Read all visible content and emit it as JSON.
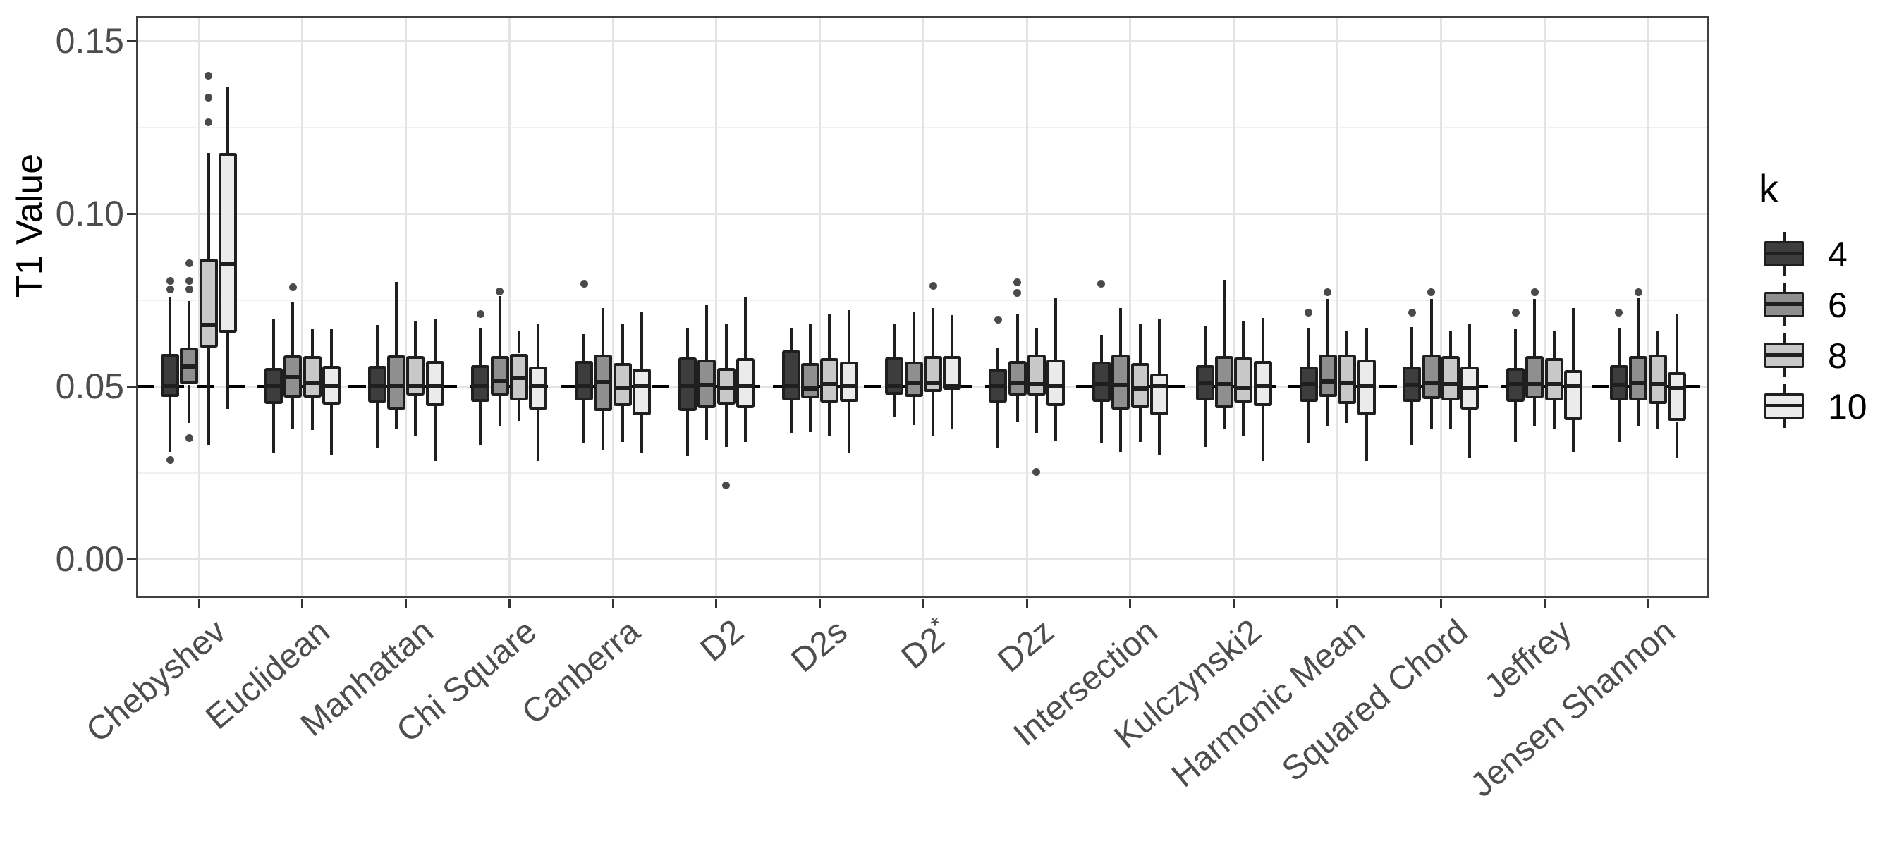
{
  "figure": {
    "background": "#ffffff"
  },
  "chart_data": {
    "type": "grouped_boxplot",
    "title": "",
    "xlabel": "",
    "ylabel": "T1 Value",
    "categories": [
      "Chebyshev",
      "Euclidean",
      "Manhattan",
      "Chi Square",
      "Canberra",
      "D2",
      "D2s",
      "D2*",
      "D2z",
      "Intersection",
      "Kulczynski2",
      "Harmonic Mean",
      "Squared Chord",
      "Jeffrey",
      "Jensen Shannon"
    ],
    "y_axis": {
      "ticks": [
        0.0,
        0.05,
        0.1,
        0.15
      ],
      "tick_labels": [
        "0.00",
        "0.05",
        "0.10",
        "0.15"
      ],
      "minor_gridlines": [
        0.025,
        0.075,
        0.125
      ],
      "range_shown": [
        -0.0112,
        0.1572
      ]
    },
    "reference_line": {
      "y": 0.05,
      "style": "dashed",
      "color": "#000000"
    },
    "grid": {
      "major": true,
      "minor": true,
      "major_color": "#e4e4e4",
      "minor_color": "#f0f0f0"
    },
    "legend": {
      "title": "k",
      "position": "right",
      "entries": [
        {
          "label": "4",
          "fill": "#3d3d3d"
        },
        {
          "label": "6",
          "fill": "#8f8f8f"
        },
        {
          "label": "8",
          "fill": "#c8c8c8"
        },
        {
          "label": "10",
          "fill": "#ebebeb"
        }
      ]
    },
    "series": [
      {
        "name": "4",
        "fill": "#3d3d3d",
        "boxes": [
          {
            "lo": 0.031,
            "q1": 0.047,
            "med": 0.0502,
            "q3": 0.0593,
            "hi": 0.076,
            "out": [
              0.078,
              0.0805,
              0.0286
            ]
          },
          {
            "lo": 0.0307,
            "q1": 0.045,
            "med": 0.05,
            "q3": 0.0553,
            "hi": 0.0697,
            "out": []
          },
          {
            "lo": 0.0323,
            "q1": 0.0453,
            "med": 0.05,
            "q3": 0.056,
            "hi": 0.0677,
            "out": []
          },
          {
            "lo": 0.0331,
            "q1": 0.0456,
            "med": 0.0503,
            "q3": 0.0561,
            "hi": 0.0669,
            "out": [
              0.071
            ]
          },
          {
            "lo": 0.0334,
            "q1": 0.0459,
            "med": 0.05,
            "q3": 0.0574,
            "hi": 0.0652,
            "out": [
              0.0797
            ]
          },
          {
            "lo": 0.0297,
            "q1": 0.0429,
            "med": 0.05,
            "q3": 0.0584,
            "hi": 0.0669,
            "out": []
          },
          {
            "lo": 0.0365,
            "q1": 0.0459,
            "med": 0.05,
            "q3": 0.0605,
            "hi": 0.0669,
            "out": []
          },
          {
            "lo": 0.0412,
            "q1": 0.0476,
            "med": 0.05,
            "q3": 0.0584,
            "hi": 0.0679,
            "out": []
          },
          {
            "lo": 0.0321,
            "q1": 0.0453,
            "med": 0.0503,
            "q3": 0.0551,
            "hi": 0.0612,
            "out": [
              0.0693
            ]
          },
          {
            "lo": 0.0334,
            "q1": 0.0456,
            "med": 0.0507,
            "q3": 0.0571,
            "hi": 0.0649,
            "out": [
              0.0797
            ]
          },
          {
            "lo": 0.0324,
            "q1": 0.0459,
            "med": 0.051,
            "q3": 0.0561,
            "hi": 0.0676,
            "out": []
          },
          {
            "lo": 0.0334,
            "q1": 0.0456,
            "med": 0.0507,
            "q3": 0.0557,
            "hi": 0.0669,
            "out": [
              0.0713
            ]
          },
          {
            "lo": 0.0331,
            "q1": 0.0456,
            "med": 0.0505,
            "q3": 0.0557,
            "hi": 0.0672,
            "out": [
              0.0713
            ]
          },
          {
            "lo": 0.0338,
            "q1": 0.0456,
            "med": 0.0507,
            "q3": 0.0554,
            "hi": 0.0666,
            "out": [
              0.0713
            ]
          },
          {
            "lo": 0.0338,
            "q1": 0.0459,
            "med": 0.0505,
            "q3": 0.0561,
            "hi": 0.0669,
            "out": [
              0.0713
            ]
          }
        ]
      },
      {
        "name": "6",
        "fill": "#8f8f8f",
        "boxes": [
          {
            "lo": 0.0393,
            "q1": 0.0505,
            "med": 0.0558,
            "q3": 0.0613,
            "hi": 0.0747,
            "out": [
              0.078,
              0.0805,
              0.0856,
              0.035
            ]
          },
          {
            "lo": 0.0377,
            "q1": 0.0467,
            "med": 0.0527,
            "q3": 0.059,
            "hi": 0.0743,
            "out": [
              0.0787
            ]
          },
          {
            "lo": 0.0377,
            "q1": 0.0433,
            "med": 0.0503,
            "q3": 0.059,
            "hi": 0.0803,
            "out": []
          },
          {
            "lo": 0.0385,
            "q1": 0.0473,
            "med": 0.0517,
            "q3": 0.0588,
            "hi": 0.0762,
            "out": [
              0.0775
            ]
          },
          {
            "lo": 0.0314,
            "q1": 0.0429,
            "med": 0.0512,
            "q3": 0.0591,
            "hi": 0.0727,
            "out": []
          },
          {
            "lo": 0.0345,
            "q1": 0.0436,
            "med": 0.0505,
            "q3": 0.0578,
            "hi": 0.0737,
            "out": []
          },
          {
            "lo": 0.0368,
            "q1": 0.0466,
            "med": 0.0493,
            "q3": 0.0568,
            "hi": 0.0679,
            "out": []
          },
          {
            "lo": 0.0388,
            "q1": 0.047,
            "med": 0.051,
            "q3": 0.0571,
            "hi": 0.0716,
            "out": []
          },
          {
            "lo": 0.0395,
            "q1": 0.0473,
            "med": 0.051,
            "q3": 0.0574,
            "hi": 0.071,
            "out": [
              0.077,
              0.0801
            ]
          },
          {
            "lo": 0.0311,
            "q1": 0.0432,
            "med": 0.0505,
            "q3": 0.0591,
            "hi": 0.0727,
            "out": []
          },
          {
            "lo": 0.0375,
            "q1": 0.0436,
            "med": 0.0507,
            "q3": 0.0588,
            "hi": 0.0808,
            "out": []
          },
          {
            "lo": 0.0385,
            "q1": 0.047,
            "med": 0.0514,
            "q3": 0.0591,
            "hi": 0.0753,
            "out": [
              0.0772
            ]
          },
          {
            "lo": 0.0378,
            "q1": 0.0463,
            "med": 0.051,
            "q3": 0.0591,
            "hi": 0.0753,
            "out": [
              0.0772
            ]
          },
          {
            "lo": 0.0385,
            "q1": 0.0466,
            "med": 0.0507,
            "q3": 0.0588,
            "hi": 0.0753,
            "out": [
              0.0772
            ]
          },
          {
            "lo": 0.0385,
            "q1": 0.0459,
            "med": 0.051,
            "q3": 0.0588,
            "hi": 0.0757,
            "out": [
              0.0772
            ]
          }
        ]
      },
      {
        "name": "8",
        "fill": "#c8c8c8",
        "boxes": [
          {
            "lo": 0.0331,
            "q1": 0.0612,
            "med": 0.0678,
            "q3": 0.087,
            "hi": 0.1175,
            "out": [
              0.1265,
              0.1335,
              0.14
            ]
          },
          {
            "lo": 0.0373,
            "q1": 0.0467,
            "med": 0.051,
            "q3": 0.0587,
            "hi": 0.0667,
            "out": []
          },
          {
            "lo": 0.0357,
            "q1": 0.0473,
            "med": 0.05,
            "q3": 0.0587,
            "hi": 0.0687,
            "out": []
          },
          {
            "lo": 0.0399,
            "q1": 0.0459,
            "med": 0.0524,
            "q3": 0.0595,
            "hi": 0.0659,
            "out": []
          },
          {
            "lo": 0.0338,
            "q1": 0.0443,
            "med": 0.0497,
            "q3": 0.0568,
            "hi": 0.0679,
            "out": []
          },
          {
            "lo": 0.0324,
            "q1": 0.0446,
            "med": 0.0497,
            "q3": 0.0554,
            "hi": 0.0679,
            "out": [
              0.0213
            ]
          },
          {
            "lo": 0.0355,
            "q1": 0.0453,
            "med": 0.0507,
            "q3": 0.0581,
            "hi": 0.071,
            "out": []
          },
          {
            "lo": 0.0358,
            "q1": 0.0483,
            "med": 0.051,
            "q3": 0.0588,
            "hi": 0.0727,
            "out": [
              0.0791
            ]
          },
          {
            "lo": 0.0365,
            "q1": 0.0473,
            "med": 0.0507,
            "q3": 0.0591,
            "hi": 0.0669,
            "out": [
              0.0253
            ]
          },
          {
            "lo": 0.0338,
            "q1": 0.0436,
            "med": 0.0495,
            "q3": 0.0568,
            "hi": 0.0679,
            "out": []
          },
          {
            "lo": 0.0355,
            "q1": 0.0453,
            "med": 0.0497,
            "q3": 0.0584,
            "hi": 0.0689,
            "out": []
          },
          {
            "lo": 0.0395,
            "q1": 0.0449,
            "med": 0.051,
            "q3": 0.0591,
            "hi": 0.0662,
            "out": []
          },
          {
            "lo": 0.0375,
            "q1": 0.0459,
            "med": 0.0507,
            "q3": 0.0588,
            "hi": 0.0662,
            "out": []
          },
          {
            "lo": 0.0375,
            "q1": 0.0459,
            "med": 0.0507,
            "q3": 0.0581,
            "hi": 0.0659,
            "out": []
          },
          {
            "lo": 0.0375,
            "q1": 0.0449,
            "med": 0.0507,
            "q3": 0.0591,
            "hi": 0.0662,
            "out": []
          }
        ]
      },
      {
        "name": "10",
        "fill": "#ebebeb",
        "boxes": [
          {
            "lo": 0.0434,
            "q1": 0.0655,
            "med": 0.0853,
            "q3": 0.1175,
            "hi": 0.1368,
            "out": []
          },
          {
            "lo": 0.0303,
            "q1": 0.0447,
            "med": 0.05,
            "q3": 0.056,
            "hi": 0.0667,
            "out": []
          },
          {
            "lo": 0.0283,
            "q1": 0.0443,
            "med": 0.05,
            "q3": 0.0573,
            "hi": 0.0697,
            "out": []
          },
          {
            "lo": 0.0284,
            "q1": 0.0432,
            "med": 0.0503,
            "q3": 0.0557,
            "hi": 0.0679,
            "out": []
          },
          {
            "lo": 0.0307,
            "q1": 0.0416,
            "med": 0.05,
            "q3": 0.0551,
            "hi": 0.0716,
            "out": []
          },
          {
            "lo": 0.0338,
            "q1": 0.0436,
            "med": 0.0503,
            "q3": 0.0581,
            "hi": 0.076,
            "out": []
          },
          {
            "lo": 0.0307,
            "q1": 0.0456,
            "med": 0.0503,
            "q3": 0.0571,
            "hi": 0.072,
            "out": []
          },
          {
            "lo": 0.0375,
            "q1": 0.049,
            "med": 0.0503,
            "q3": 0.0588,
            "hi": 0.0706,
            "out": []
          },
          {
            "lo": 0.0341,
            "q1": 0.0443,
            "med": 0.05,
            "q3": 0.0578,
            "hi": 0.0757,
            "out": []
          },
          {
            "lo": 0.0301,
            "q1": 0.0416,
            "med": 0.05,
            "q3": 0.0537,
            "hi": 0.0693,
            "out": []
          },
          {
            "lo": 0.0284,
            "q1": 0.0443,
            "med": 0.05,
            "q3": 0.0574,
            "hi": 0.0699,
            "out": []
          },
          {
            "lo": 0.0284,
            "q1": 0.0416,
            "med": 0.0503,
            "q3": 0.0578,
            "hi": 0.0669,
            "out": []
          },
          {
            "lo": 0.0294,
            "q1": 0.0432,
            "med": 0.0497,
            "q3": 0.0557,
            "hi": 0.0679,
            "out": []
          },
          {
            "lo": 0.0311,
            "q1": 0.0402,
            "med": 0.0503,
            "q3": 0.0547,
            "hi": 0.0727,
            "out": []
          },
          {
            "lo": 0.0294,
            "q1": 0.0399,
            "med": 0.0497,
            "q3": 0.054,
            "hi": 0.071,
            "out": []
          }
        ]
      }
    ],
    "style": {
      "box_stroke": "#1f1f1f",
      "outlier_color": "#4a4a4a",
      "panel_border": "#404040",
      "tick_text_color": "#4d4d4d",
      "axis_title_color": "#000000"
    }
  }
}
